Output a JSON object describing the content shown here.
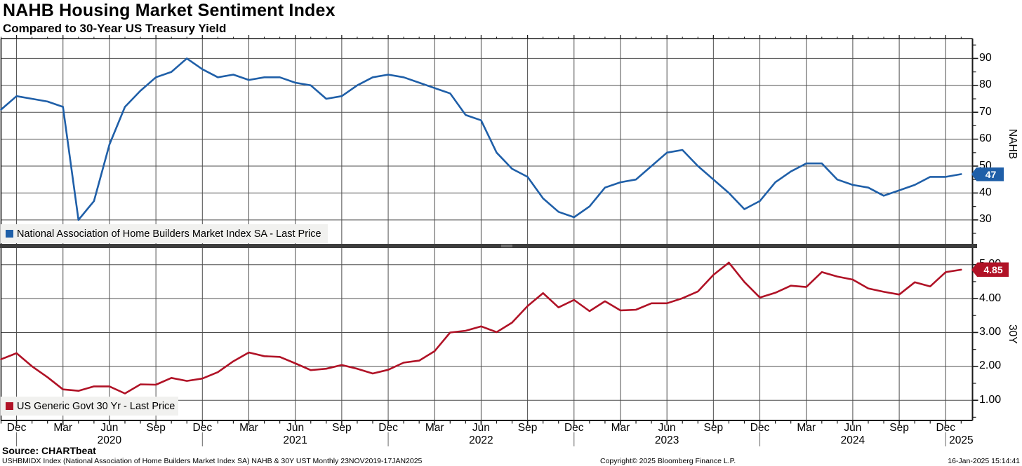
{
  "header": {
    "title": "NAHB Housing Market Sentiment Index",
    "subtitle": "Compared to 30-Year US Treasury Yield"
  },
  "footer": {
    "source": "Source: CHARTbeat",
    "footnote": "USHBMIDX Index (National Association of Home Builders Market Index SA) NAHB & 30Y UST  Monthly 23NOV2019-17JAN2025",
    "copyright": "Copyright© 2025 Bloomberg Finance L.P.",
    "timestamp": "16-Jan-2025 15:14:41"
  },
  "colors": {
    "nahb": "#1f5fa8",
    "treasury": "#b01226",
    "grid": "#4d4d4d",
    "axis": "#1a1a1a",
    "legend_bg": "#f1f1ef",
    "divider": "#3d3d3d"
  },
  "chart_data": [
    {
      "type": "line",
      "panel": "top",
      "legend": "National Association of Home Builders Market Index SA - Last Price",
      "axis_title": "NAHB",
      "color_key": "nahb",
      "last_price": 47,
      "last_price_label": "47",
      "ylim": [
        21,
        97.5
      ],
      "yticks": [
        30,
        40,
        50,
        60,
        70,
        80,
        90
      ],
      "tick_decimals": 0,
      "x_monthly_from": "Nov 2019",
      "x_monthly_to": "Jan 2025",
      "values": [
        71,
        76,
        75,
        74,
        72,
        30,
        37,
        58,
        72,
        78,
        83,
        85,
        90,
        86,
        83,
        84,
        82,
        83,
        83,
        81,
        80,
        75,
        76,
        80,
        83,
        84,
        83,
        81,
        79,
        77,
        69,
        67,
        55,
        49,
        46,
        38,
        33,
        31,
        35,
        42,
        44,
        45,
        50,
        55,
        56,
        50,
        45,
        40,
        34,
        37,
        44,
        48,
        51,
        51,
        45,
        43,
        42,
        39,
        41,
        43,
        46,
        46,
        47
      ]
    },
    {
      "type": "line",
      "panel": "bottom",
      "legend": "US Generic Govt 30 Yr - Last Price",
      "axis_title": "30Y",
      "color_key": "treasury",
      "last_price": 4.85,
      "last_price_label": "4.85",
      "ylim": [
        0.4,
        5.5
      ],
      "yticks": [
        1.0,
        2.0,
        3.0,
        4.0,
        5.0
      ],
      "tick_decimals": 2,
      "x_monthly_from": "Nov 2019",
      "x_monthly_to": "Jan 2025",
      "values": [
        2.21,
        2.39,
        2.0,
        1.68,
        1.32,
        1.28,
        1.41,
        1.41,
        1.2,
        1.47,
        1.46,
        1.66,
        1.57,
        1.64,
        1.83,
        2.15,
        2.41,
        2.3,
        2.28,
        2.09,
        1.89,
        1.93,
        2.04,
        1.93,
        1.79,
        1.9,
        2.11,
        2.17,
        2.45,
        3.0,
        3.05,
        3.18,
        3.01,
        3.29,
        3.78,
        4.16,
        3.74,
        3.96,
        3.63,
        3.92,
        3.65,
        3.67,
        3.86,
        3.86,
        4.01,
        4.21,
        4.7,
        5.06,
        4.49,
        4.03,
        4.17,
        4.38,
        4.34,
        4.78,
        4.65,
        4.56,
        4.3,
        4.2,
        4.12,
        4.48,
        4.36,
        4.78,
        4.85
      ]
    }
  ],
  "x_axis": {
    "unit": "month",
    "months_count": 63,
    "quarter_ticks": [
      {
        "i": 1,
        "label": "Dec"
      },
      {
        "i": 4,
        "label": "Mar"
      },
      {
        "i": 7,
        "label": "Jun"
      },
      {
        "i": 10,
        "label": "Sep"
      },
      {
        "i": 13,
        "label": "Dec"
      },
      {
        "i": 16,
        "label": "Mar"
      },
      {
        "i": 19,
        "label": "Jun"
      },
      {
        "i": 22,
        "label": "Sep"
      },
      {
        "i": 25,
        "label": "Dec"
      },
      {
        "i": 28,
        "label": "Mar"
      },
      {
        "i": 31,
        "label": "Jun"
      },
      {
        "i": 34,
        "label": "Sep"
      },
      {
        "i": 37,
        "label": "Dec"
      },
      {
        "i": 40,
        "label": "Mar"
      },
      {
        "i": 43,
        "label": "Jun"
      },
      {
        "i": 46,
        "label": "Sep"
      },
      {
        "i": 49,
        "label": "Dec"
      },
      {
        "i": 52,
        "label": "Mar"
      },
      {
        "i": 55,
        "label": "Jun"
      },
      {
        "i": 58,
        "label": "Sep"
      },
      {
        "i": 61,
        "label": "Dec"
      }
    ],
    "year_labels": [
      {
        "i": 7,
        "label": "2020"
      },
      {
        "i": 19,
        "label": "2021"
      },
      {
        "i": 31,
        "label": "2022"
      },
      {
        "i": 43,
        "label": "2023"
      },
      {
        "i": 55,
        "label": "2024"
      },
      {
        "i": 62,
        "label": "2025"
      }
    ],
    "year_separator_indices": [
      1,
      13,
      25,
      37,
      49,
      61
    ]
  }
}
